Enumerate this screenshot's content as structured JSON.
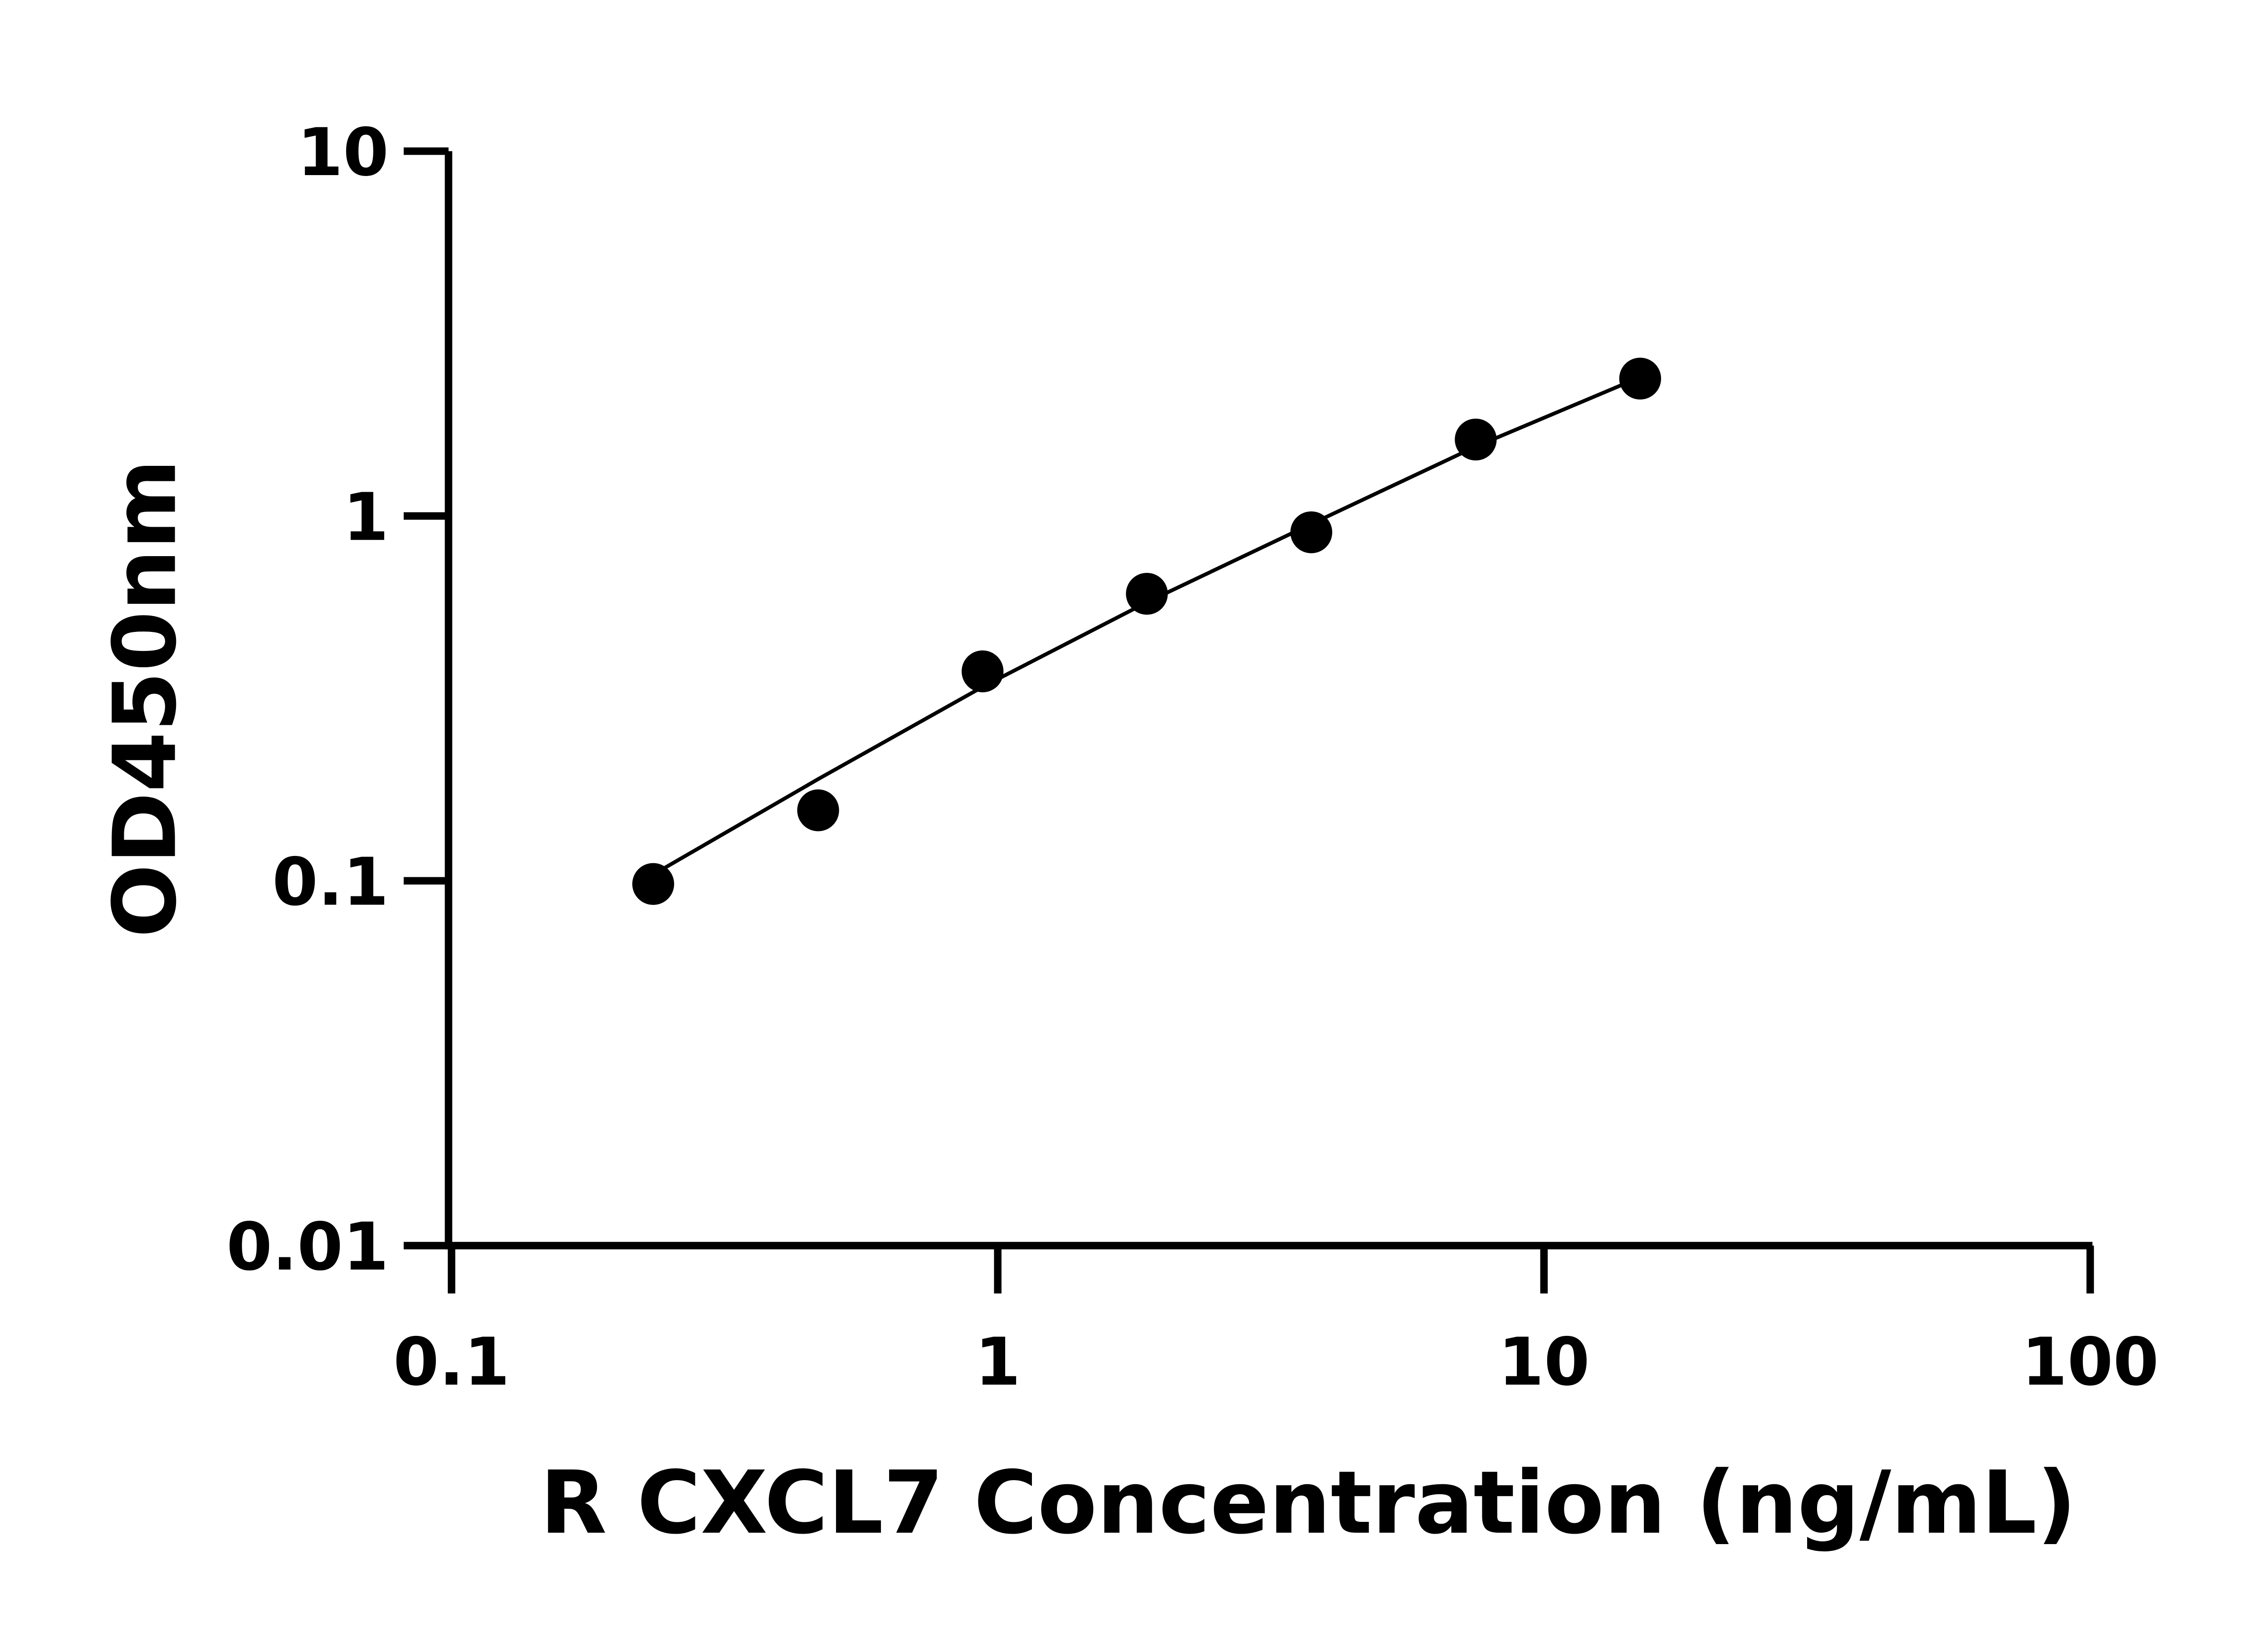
{
  "chart_data": {
    "type": "scatter",
    "title": "",
    "xlabel": "R CXCL7 Concentration (ng/mL)",
    "ylabel": "OD450nm",
    "x_scale": "log",
    "y_scale": "log",
    "xlim": [
      0.1,
      100
    ],
    "ylim": [
      0.01,
      10
    ],
    "x_ticks": [
      "0.1",
      "1",
      "10",
      "100"
    ],
    "y_ticks": [
      "0.01",
      "0.1",
      "1",
      "10"
    ],
    "grid": false,
    "points": {
      "x": [
        0.234,
        0.469,
        0.938,
        1.875,
        3.75,
        7.5,
        15
      ],
      "y": [
        0.098,
        0.156,
        0.375,
        0.612,
        0.902,
        1.62,
        2.38
      ]
    },
    "fit_curve": {
      "x": [
        0.234,
        0.469,
        0.938,
        1.875,
        3.75,
        7.5,
        15
      ],
      "y": [
        0.104,
        0.19,
        0.34,
        0.58,
        0.95,
        1.55,
        2.4
      ]
    },
    "colors": {
      "points": "#000000",
      "line": "#000000",
      "axes": "#000000"
    }
  }
}
